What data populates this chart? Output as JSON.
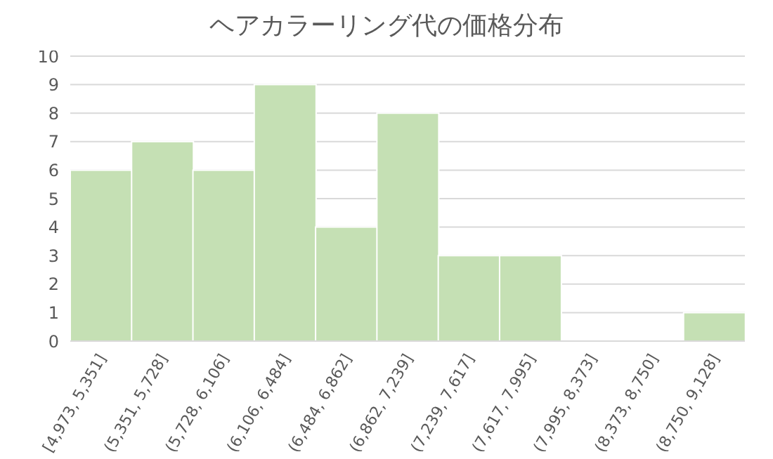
{
  "chart_data": {
    "type": "bar",
    "title": "ヘアカラーリング代の価格分布",
    "categories": [
      "[4,973, 5,351]",
      "(5,351, 5,728]",
      "(5,728, 6,106]",
      "(6,106, 6,484]",
      "(6,484, 6,862]",
      "(6,862, 7,239]",
      "(7,239, 7,617]",
      "(7,617, 7,995]",
      "(7,995, 8,373]",
      "(8,373, 8,750]",
      "(8,750, 9,128]"
    ],
    "values": [
      6,
      7,
      6,
      9,
      4,
      8,
      3,
      3,
      0,
      0,
      1
    ],
    "color": "#c5e0b4",
    "ylim": [
      0,
      10
    ],
    "yticks": [
      0,
      1,
      2,
      3,
      4,
      5,
      6,
      7,
      8,
      9,
      10
    ],
    "grid": "y"
  }
}
